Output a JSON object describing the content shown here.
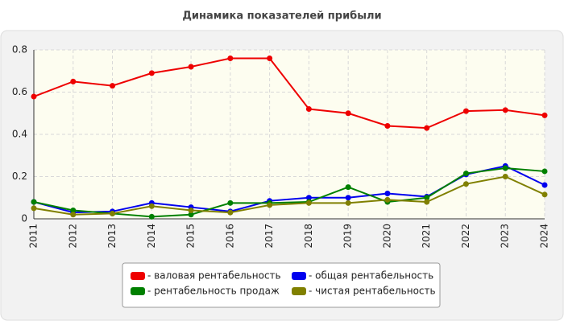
{
  "chart_data": {
    "type": "line",
    "title": "Динамика показателей прибыли",
    "categories": [
      "2011",
      "2012",
      "2013",
      "2014",
      "2015",
      "2016",
      "2017",
      "2018",
      "2019",
      "2020",
      "2021",
      "2022",
      "2023",
      "2024"
    ],
    "series": [
      {
        "name": "- валовая рентабельность",
        "color": "#ee0000",
        "values": [
          0.579,
          0.65,
          0.63,
          0.69,
          0.72,
          0.76,
          0.76,
          0.52,
          0.5,
          0.44,
          0.43,
          0.51,
          0.515,
          0.49
        ]
      },
      {
        "name": "- общая рентабельность",
        "color": "#0000ee",
        "values": [
          0.08,
          0.03,
          0.035,
          0.075,
          0.055,
          0.035,
          0.085,
          0.1,
          0.1,
          0.12,
          0.105,
          0.21,
          0.25,
          0.16
        ]
      },
      {
        "name": "- рентабельность продаж",
        "color": "#008000",
        "values": [
          0.08,
          0.04,
          0.025,
          0.01,
          0.02,
          0.075,
          0.075,
          0.08,
          0.15,
          0.08,
          0.1,
          0.215,
          0.24,
          0.225
        ]
      },
      {
        "name": "- чистая рентабельность",
        "color": "#808000",
        "values": [
          0.05,
          0.02,
          0.025,
          0.06,
          0.04,
          0.03,
          0.065,
          0.075,
          0.075,
          0.09,
          0.08,
          0.165,
          0.2,
          0.115
        ]
      }
    ],
    "ylim": [
      0,
      0.8
    ],
    "yticks": [
      0,
      0.2,
      0.4,
      0.6,
      0.8
    ],
    "grid": true,
    "legend": "bottom"
  }
}
